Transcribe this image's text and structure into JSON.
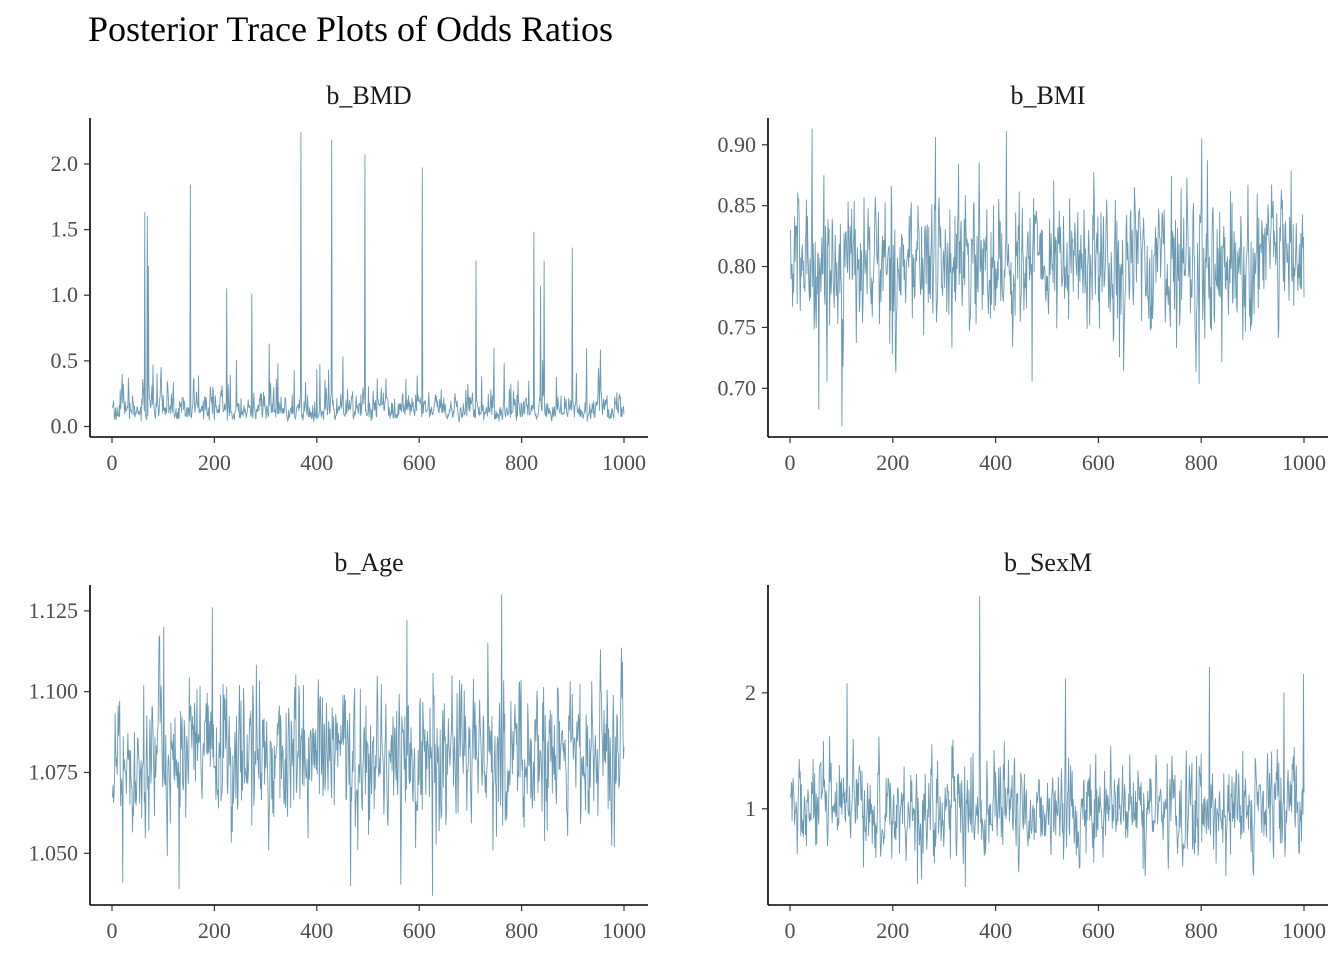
{
  "title": "Posterior Trace Plots of Odds Ratios",
  "colors": {
    "trace": "#6a9ab3"
  },
  "chart_data": [
    {
      "type": "line",
      "title": "b_BMD",
      "xlabel": "",
      "ylabel": "",
      "xlim": [
        0,
        1000
      ],
      "ylim": [
        -0.08,
        2.35
      ],
      "x_ticks": [
        0,
        200,
        400,
        600,
        800,
        1000
      ],
      "x_tick_labels": [
        "0",
        "200",
        "400",
        "600",
        "800",
        "1000"
      ],
      "y_ticks": [
        0.0,
        0.5,
        1.0,
        1.5,
        2.0
      ],
      "y_tick_labels": [
        "0.0",
        "0.5",
        "1.0",
        "1.5",
        "2.0"
      ],
      "series": [
        {
          "iterations": 1000,
          "baseline": 0.13,
          "spread": 0.06,
          "min": 0.01,
          "spikes": [
            [
              63,
              1.63
            ],
            [
              68,
              1.6
            ],
            [
              70,
              1.22
            ],
            [
              152,
              1.84
            ],
            [
              223,
              1.05
            ],
            [
              272,
              1.01
            ],
            [
              368,
              2.24
            ],
            [
              428,
              2.18
            ],
            [
              493,
              2.07
            ],
            [
              605,
              1.97
            ],
            [
              710,
              1.26
            ],
            [
              823,
              1.48
            ],
            [
              843,
              1.26
            ],
            [
              898,
              1.36
            ]
          ]
        }
      ]
    },
    {
      "type": "line",
      "title": "b_BMI",
      "xlabel": "",
      "ylabel": "",
      "xlim": [
        0,
        1000
      ],
      "ylim": [
        0.66,
        0.922
      ],
      "x_ticks": [
        0,
        200,
        400,
        600,
        800,
        1000
      ],
      "x_tick_labels": [
        "0",
        "200",
        "400",
        "600",
        "800",
        "1000"
      ],
      "y_ticks": [
        0.7,
        0.75,
        0.8,
        0.85,
        0.9
      ],
      "y_tick_labels": [
        "0.70",
        "0.75",
        "0.80",
        "0.85",
        "0.90"
      ],
      "series": [
        {
          "iterations": 1000,
          "baseline": 0.803,
          "spread": 0.032,
          "min": 0.67,
          "spikes": [
            [
              42,
              0.913
            ],
            [
              100,
              0.669
            ],
            [
              55,
              0.683
            ],
            [
              420,
              0.911
            ],
            [
              795,
              0.704
            ],
            [
              470,
              0.706
            ],
            [
              282,
              0.906
            ],
            [
              800,
              0.905
            ]
          ]
        }
      ]
    },
    {
      "type": "line",
      "title": "b_Age",
      "xlabel": "",
      "ylabel": "",
      "xlim": [
        0,
        1000
      ],
      "ylim": [
        1.034,
        1.133
      ],
      "x_ticks": [
        0,
        200,
        400,
        600,
        800,
        1000
      ],
      "x_tick_labels": [
        "0",
        "200",
        "400",
        "600",
        "800",
        "1000"
      ],
      "y_ticks": [
        1.05,
        1.075,
        1.1,
        1.125
      ],
      "y_tick_labels": [
        "1.050",
        "1.075",
        "1.100",
        "1.125"
      ],
      "series": [
        {
          "iterations": 1000,
          "baseline": 1.08,
          "spread": 0.013,
          "min": 1.037,
          "spikes": [
            [
              20,
              1.041
            ],
            [
              100,
              1.12
            ],
            [
              195,
              1.126
            ],
            [
              625,
              1.037
            ],
            [
              760,
              1.13
            ],
            [
              465,
              1.04
            ],
            [
              130,
              1.039
            ],
            [
              575,
              1.122
            ]
          ]
        }
      ]
    },
    {
      "type": "line",
      "title": "b_SexM",
      "xlabel": "",
      "ylabel": "",
      "xlim": [
        0,
        1000
      ],
      "ylim": [
        0.17,
        2.93
      ],
      "x_ticks": [
        0,
        200,
        400,
        600,
        800,
        1000
      ],
      "x_tick_labels": [
        "0",
        "200",
        "400",
        "600",
        "800",
        "1000"
      ],
      "y_ticks": [
        1,
        2
      ],
      "y_tick_labels": [
        "1",
        "2"
      ],
      "series": [
        {
          "iterations": 1000,
          "baseline": 0.99,
          "spread": 0.24,
          "min": 0.32,
          "spikes": [
            [
              368,
              2.83
            ],
            [
              110,
              2.08
            ],
            [
              998,
              2.16
            ],
            [
              815,
              2.22
            ],
            [
              535,
              2.12
            ],
            [
              340,
              0.33
            ],
            [
              690,
              0.42
            ],
            [
              960,
              2.0
            ]
          ]
        }
      ]
    }
  ]
}
